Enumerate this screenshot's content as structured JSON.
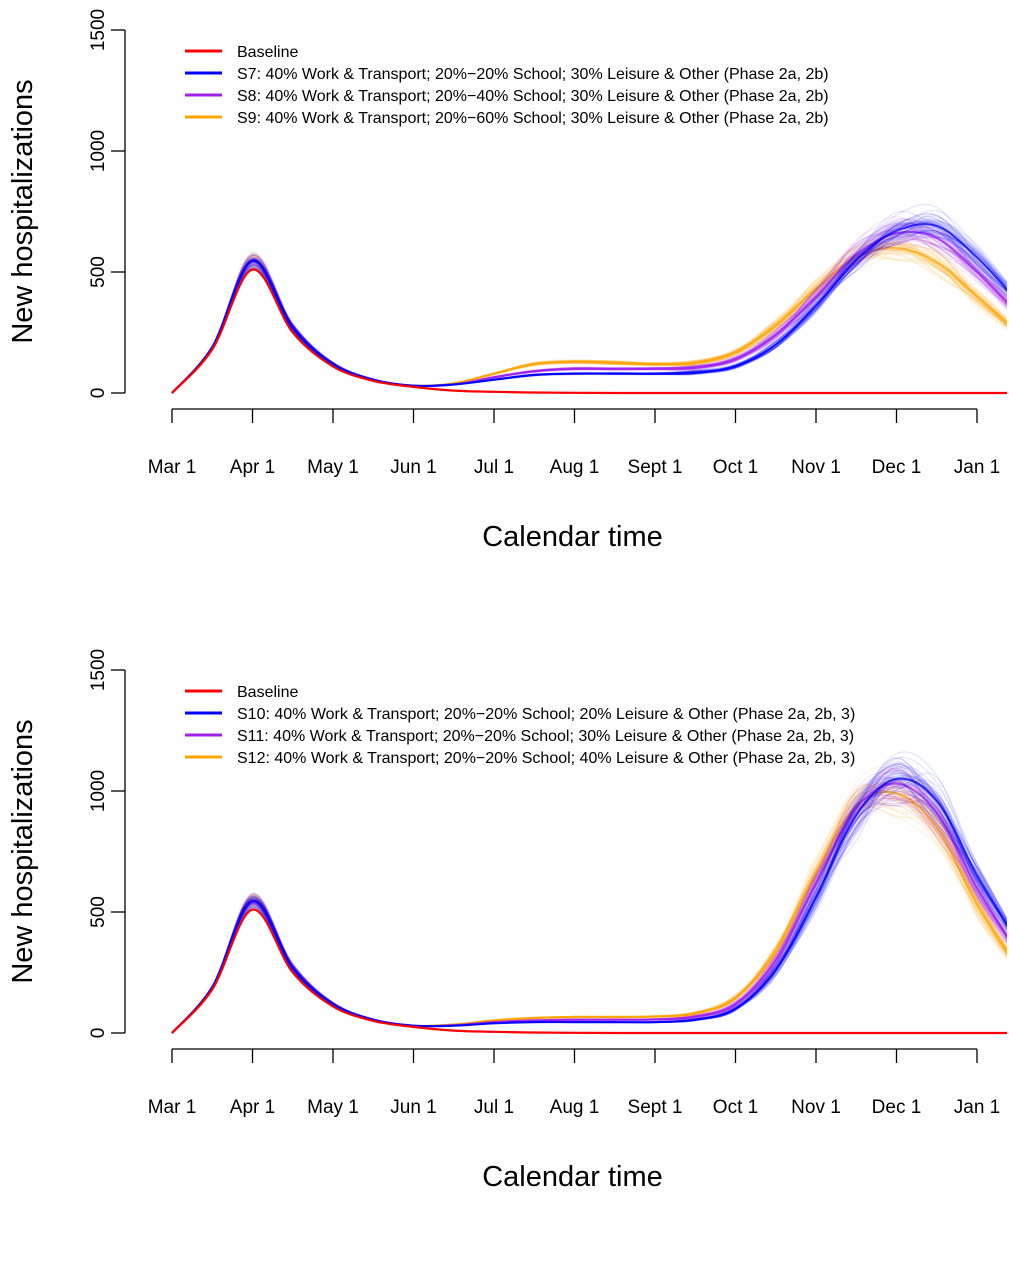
{
  "chart_data": [
    {
      "type": "line",
      "title": "",
      "xlabel": "Calendar time",
      "ylabel": "New hospitalizations",
      "ylim": [
        0,
        1500
      ],
      "yticks": [
        0,
        500,
        1000,
        1500
      ],
      "xticks": [
        "Mar 1",
        "Apr 1",
        "May 1",
        "Jun 1",
        "Jul 1",
        "Aug 1",
        "Sept 1",
        "Oct 1",
        "Nov 1",
        "Dec 1",
        "Jan 1"
      ],
      "x": [
        "Mar 1",
        "Mar 16",
        "Apr 1",
        "Apr 16",
        "May 1",
        "May 16",
        "Jun 1",
        "Jun 16",
        "Jul 1",
        "Jul 16",
        "Aug 1",
        "Aug 16",
        "Sept 1",
        "Sept 16",
        "Oct 1",
        "Oct 16",
        "Nov 1",
        "Nov 16",
        "Dec 1",
        "Dec 16",
        "Jan 1",
        "Jan 12"
      ],
      "legend": {
        "position": "top-left"
      },
      "series": [
        {
          "name": "Baseline",
          "color": "#ff0000",
          "values": [
            0,
            180,
            510,
            250,
            110,
            50,
            25,
            10,
            5,
            2,
            1,
            0,
            0,
            0,
            0,
            0,
            0,
            0,
            0,
            0,
            0,
            0
          ]
        },
        {
          "name": "S7: 40% Work & Transport; 20%−20% School; 30% Leisure & Other (Phase 2a, 2b)",
          "color": "#0000ff",
          "values": [
            0,
            190,
            545,
            270,
            120,
            55,
            30,
            35,
            55,
            75,
            80,
            80,
            80,
            85,
            110,
            200,
            360,
            550,
            670,
            690,
            560,
            380
          ]
        },
        {
          "name": "S8: 40% Work & Transport; 20%−40% School; 30% Leisure & Other (Phase 2a, 2b)",
          "color": "#a020f0",
          "values": [
            0,
            190,
            545,
            270,
            120,
            55,
            30,
            35,
            65,
            90,
            100,
            100,
            100,
            105,
            140,
            240,
            400,
            570,
            660,
            640,
            500,
            330
          ]
        },
        {
          "name": "S9: 40% Work & Transport; 20%−60% School; 30% Leisure & Other (Phase 2a, 2b)",
          "color": "#ffa500",
          "values": [
            0,
            190,
            545,
            270,
            120,
            55,
            30,
            40,
            80,
            120,
            130,
            125,
            120,
            125,
            170,
            280,
            430,
            560,
            600,
            540,
            400,
            250
          ]
        }
      ]
    },
    {
      "type": "line",
      "title": "",
      "xlabel": "Calendar time",
      "ylabel": "New hospitalizations",
      "ylim": [
        0,
        1500
      ],
      "yticks": [
        0,
        500,
        1000,
        1500
      ],
      "xticks": [
        "Mar 1",
        "Apr 1",
        "May 1",
        "Jun 1",
        "Jul 1",
        "Aug 1",
        "Sept 1",
        "Oct 1",
        "Nov 1",
        "Dec 1",
        "Jan 1"
      ],
      "x": [
        "Mar 1",
        "Mar 16",
        "Apr 1",
        "Apr 16",
        "May 1",
        "May 16",
        "Jun 1",
        "Jun 16",
        "Jul 1",
        "Jul 16",
        "Aug 1",
        "Aug 16",
        "Sept 1",
        "Sept 16",
        "Oct 1",
        "Oct 16",
        "Nov 1",
        "Nov 16",
        "Dec 1",
        "Dec 16",
        "Jan 1",
        "Jan 12"
      ],
      "legend": {
        "position": "top-left"
      },
      "series": [
        {
          "name": "Baseline",
          "color": "#ff0000",
          "values": [
            0,
            180,
            510,
            250,
            110,
            50,
            25,
            10,
            5,
            2,
            1,
            0,
            0,
            0,
            0,
            0,
            0,
            0,
            0,
            0,
            0,
            0
          ]
        },
        {
          "name": "S10: 40% Work & Transport; 20%−20% School; 20% Leisure & Other (Phase 2a, 2b, 3)",
          "color": "#0000ff",
          "values": [
            0,
            190,
            545,
            270,
            120,
            55,
            30,
            30,
            40,
            45,
            45,
            45,
            45,
            55,
            100,
            260,
            560,
            900,
            1050,
            960,
            650,
            380
          ]
        },
        {
          "name": "S11: 40% Work & Transport; 20%−20% School; 30% Leisure & Other (Phase 2a, 2b, 3)",
          "color": "#a020f0",
          "values": [
            0,
            190,
            545,
            270,
            120,
            55,
            30,
            32,
            45,
            52,
            55,
            55,
            56,
            68,
            120,
            300,
            620,
            930,
            1030,
            910,
            600,
            330
          ]
        },
        {
          "name": "S12: 40% Work & Transport; 20%−20% School; 40% Leisure & Other (Phase 2a, 2b, 3)",
          "color": "#ffa500",
          "values": [
            0,
            190,
            545,
            270,
            120,
            55,
            30,
            35,
            52,
            62,
            66,
            66,
            68,
            82,
            145,
            340,
            660,
            940,
            990,
            850,
            530,
            270
          ]
        }
      ]
    }
  ]
}
